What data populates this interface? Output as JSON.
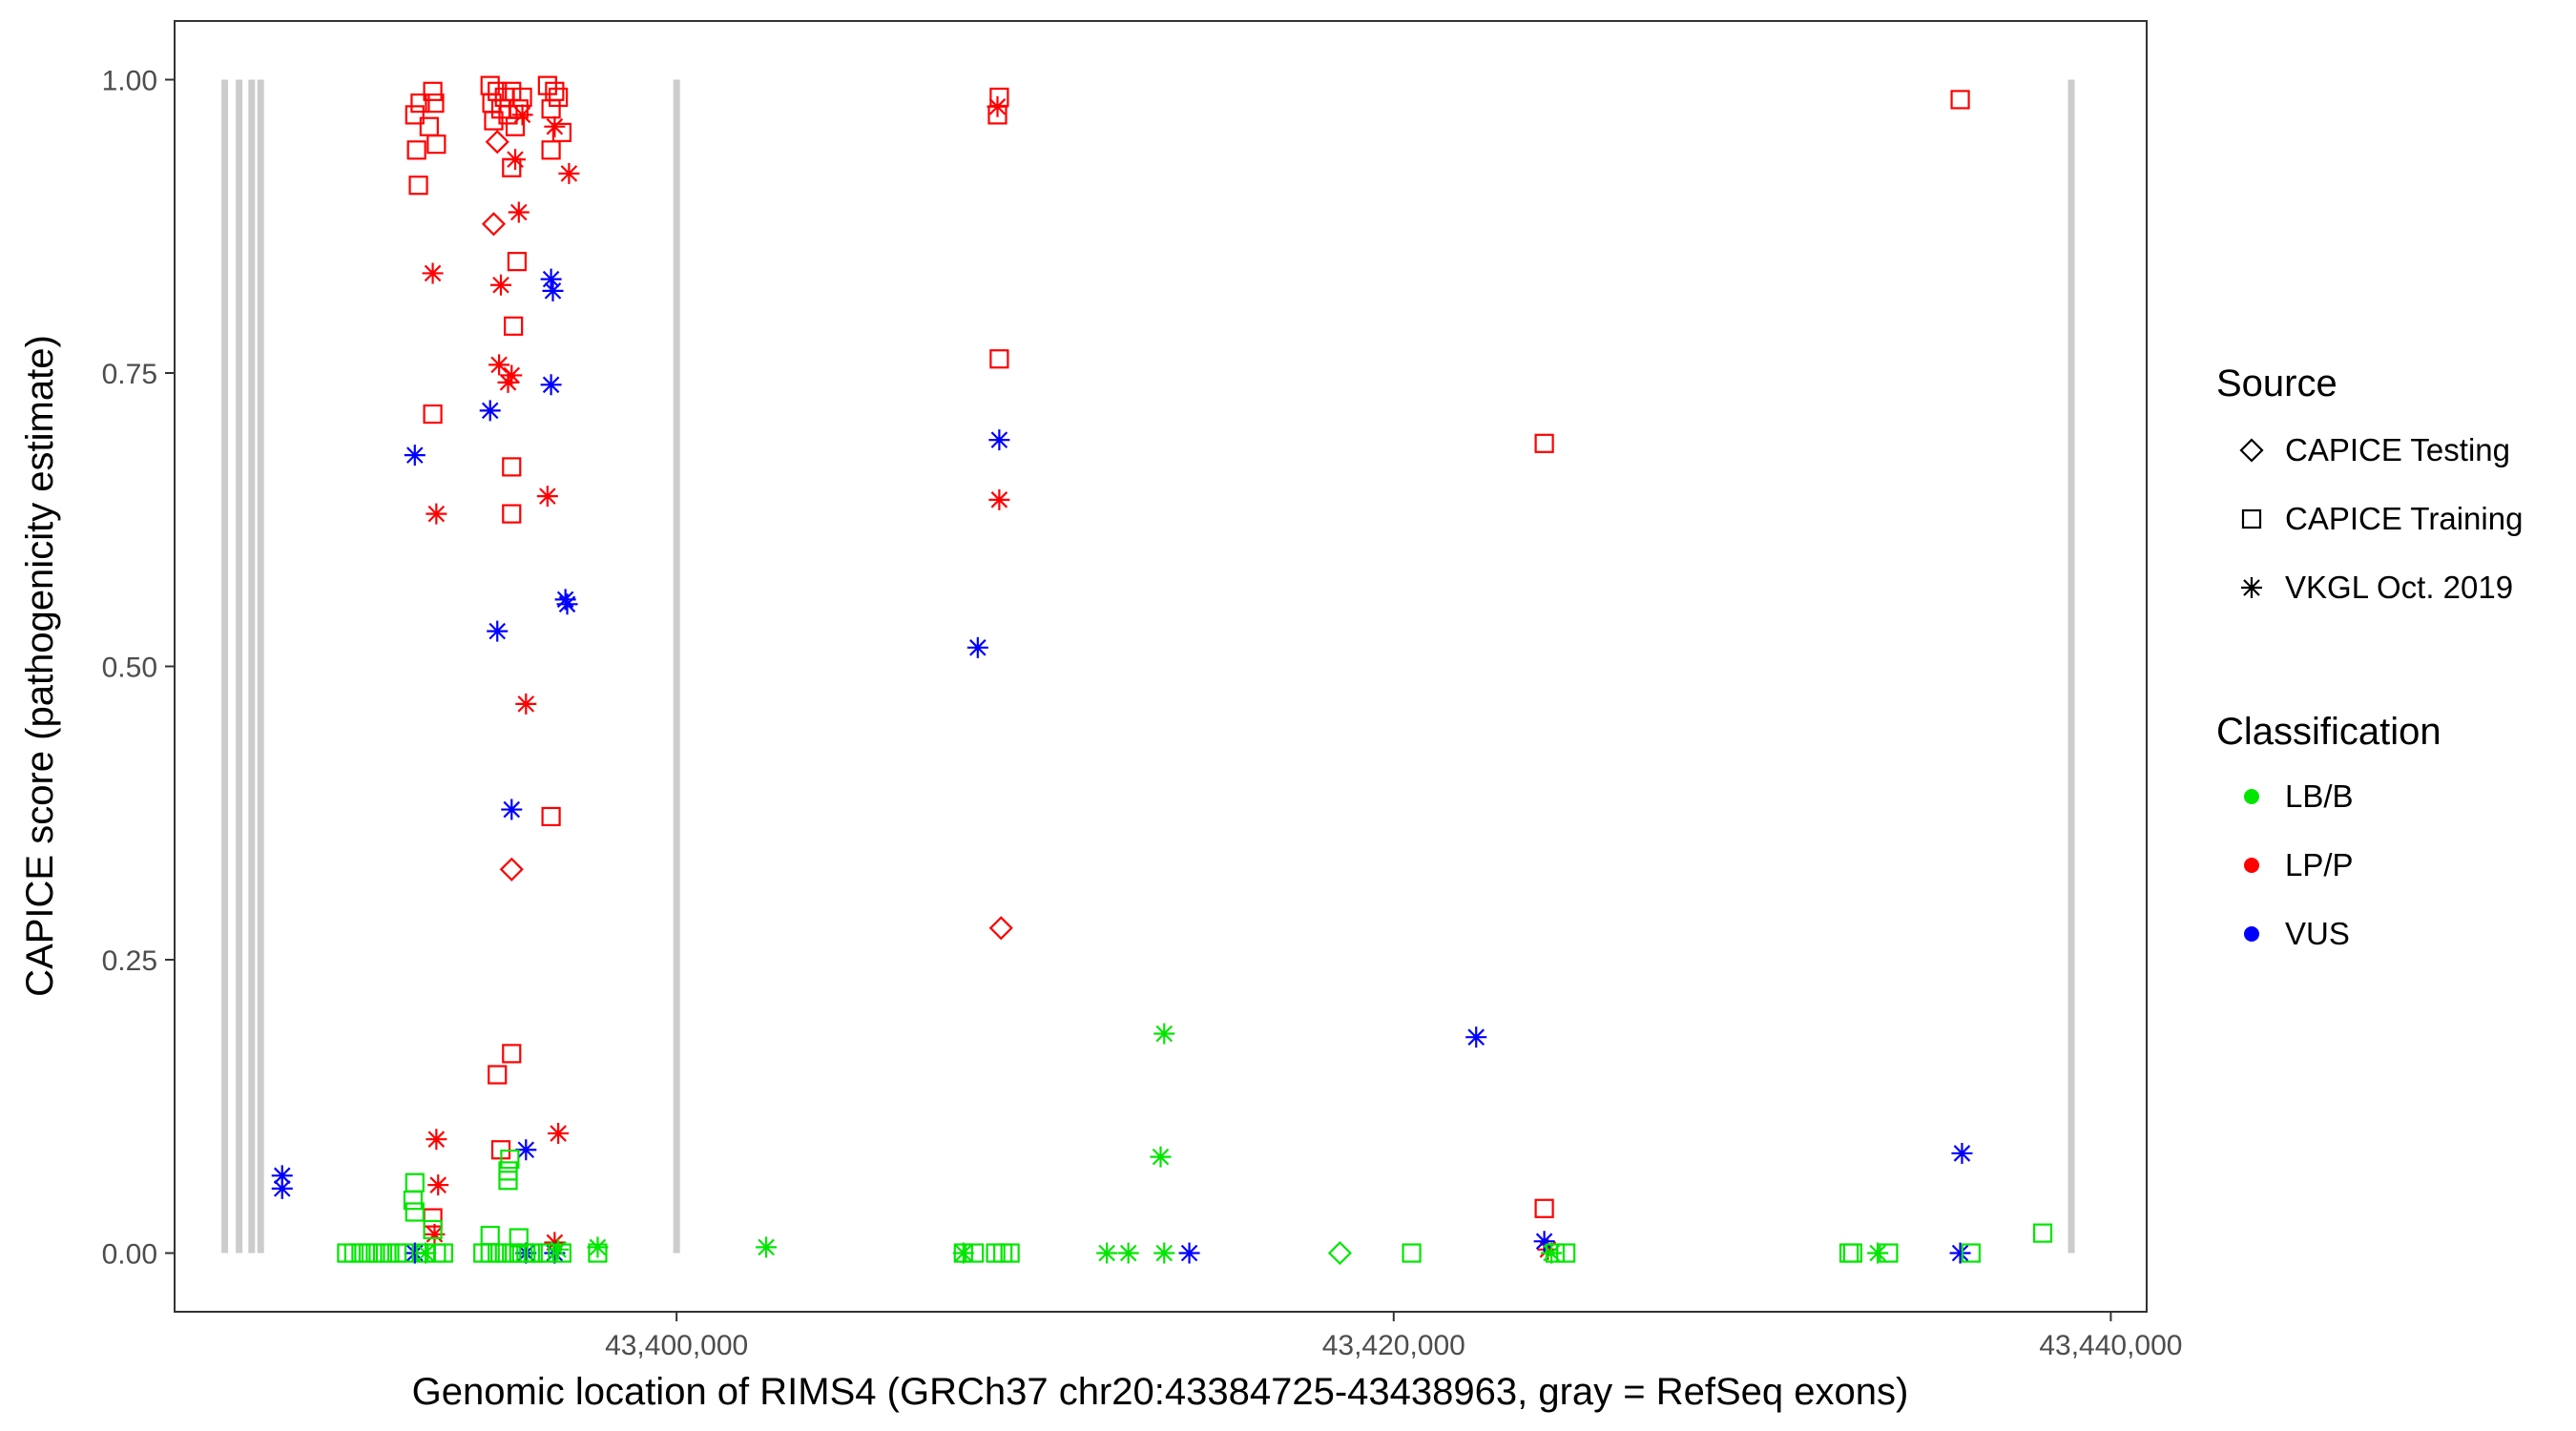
{
  "chart_data": {
    "type": "scatter",
    "xlabel": "Genomic location of RIMS4 (GRCh37 chr20:43384725-43438963, gray = RefSeq exons)",
    "ylabel": "CAPICE score (pathogenicity estimate)",
    "xlim": [
      43386000,
      43441000
    ],
    "ylim": [
      -0.05,
      1.05
    ],
    "x_ticks": [
      {
        "value": 43400000,
        "label": "43,400,000"
      },
      {
        "value": 43420000,
        "label": "43,420,000"
      },
      {
        "value": 43440000,
        "label": "43,440,000"
      }
    ],
    "y_ticks": [
      {
        "value": 0.0,
        "label": "0.00"
      },
      {
        "value": 0.25,
        "label": "0.25"
      },
      {
        "value": 0.5,
        "label": "0.50"
      },
      {
        "value": 0.75,
        "label": "0.75"
      },
      {
        "value": 1.0,
        "label": "1.00"
      }
    ],
    "grid": false,
    "legend_placement": "right",
    "exons": [
      43387400,
      43387800,
      43388150,
      43388400,
      43400000,
      43438900
    ],
    "legend": {
      "source_title": "Source",
      "source_items": [
        {
          "label": "CAPICE Testing",
          "shape": "diamond"
        },
        {
          "label": "CAPICE Training",
          "shape": "square"
        },
        {
          "label": "VKGL Oct. 2019",
          "shape": "asterisk"
        }
      ],
      "class_title": "Classification",
      "class_items": [
        {
          "label": "LB/B",
          "color": "#00e600"
        },
        {
          "label": "LP/P",
          "color": "#ff0000"
        },
        {
          "label": "VUS",
          "color": "#0000ff"
        }
      ]
    },
    "colors": {
      "LB/B": "#00e600",
      "LP/P": "#ff0000",
      "VUS": "#0000ff",
      "exon": "#cccccc"
    },
    "points": [
      [
        43392700,
        0.97,
        "square",
        "LP/P"
      ],
      [
        43392750,
        0.94,
        "square",
        "LP/P"
      ],
      [
        43392800,
        0.91,
        "square",
        "LP/P"
      ],
      [
        43392850,
        0.98,
        "square",
        "LP/P"
      ],
      [
        43393100,
        0.96,
        "square",
        "LP/P"
      ],
      [
        43393200,
        0.99,
        "square",
        "LP/P"
      ],
      [
        43393250,
        0.98,
        "square",
        "LP/P"
      ],
      [
        43393300,
        0.945,
        "square",
        "LP/P"
      ],
      [
        43393200,
        0.715,
        "square",
        "LP/P"
      ],
      [
        43394800,
        0.995,
        "square",
        "LP/P"
      ],
      [
        43394850,
        0.98,
        "square",
        "LP/P"
      ],
      [
        43394900,
        0.965,
        "square",
        "LP/P"
      ],
      [
        43395000,
        0.99,
        "square",
        "LP/P"
      ],
      [
        43395100,
        0.975,
        "square",
        "LP/P"
      ],
      [
        43395200,
        0.985,
        "square",
        "LP/P"
      ],
      [
        43395300,
        0.97,
        "square",
        "LP/P"
      ],
      [
        43395400,
        0.99,
        "square",
        "LP/P"
      ],
      [
        43395500,
        0.96,
        "square",
        "LP/P"
      ],
      [
        43395600,
        0.975,
        "square",
        "LP/P"
      ],
      [
        43395700,
        0.985,
        "square",
        "LP/P"
      ],
      [
        43395400,
        0.925,
        "square",
        "LP/P"
      ],
      [
        43395550,
        0.845,
        "square",
        "LP/P"
      ],
      [
        43395450,
        0.79,
        "square",
        "LP/P"
      ],
      [
        43395400,
        0.67,
        "square",
        "LP/P"
      ],
      [
        43395400,
        0.63,
        "square",
        "LP/P"
      ],
      [
        43396400,
        0.995,
        "square",
        "LP/P"
      ],
      [
        43396500,
        0.975,
        "square",
        "LP/P"
      ],
      [
        43396600,
        0.99,
        "square",
        "LP/P"
      ],
      [
        43396700,
        0.985,
        "square",
        "LP/P"
      ],
      [
        43396800,
        0.955,
        "square",
        "LP/P"
      ],
      [
        43396500,
        0.94,
        "square",
        "LP/P"
      ],
      [
        43396500,
        0.372,
        "square",
        "LP/P"
      ],
      [
        43395400,
        0.17,
        "square",
        "LP/P"
      ],
      [
        43395000,
        0.152,
        "square",
        "LP/P"
      ],
      [
        43395100,
        0.088,
        "square",
        "LP/P"
      ],
      [
        43393200,
        0.03,
        "square",
        "LP/P"
      ],
      [
        43409000,
        0.985,
        "square",
        "LP/P"
      ],
      [
        43408950,
        0.97,
        "square",
        "LP/P"
      ],
      [
        43409000,
        0.762,
        "square",
        "LP/P"
      ],
      [
        43424200,
        0.69,
        "square",
        "LP/P"
      ],
      [
        43424200,
        0.038,
        "square",
        "LP/P"
      ],
      [
        43435800,
        0.983,
        "square",
        "LP/P"
      ],
      [
        43394900,
        0.877,
        "diamond",
        "LP/P"
      ],
      [
        43395000,
        0.947,
        "diamond",
        "LP/P"
      ],
      [
        43395400,
        0.327,
        "diamond",
        "LP/P"
      ],
      [
        43409050,
        0.277,
        "diamond",
        "LP/P"
      ],
      [
        43393200,
        0.835,
        "asterisk",
        "LP/P"
      ],
      [
        43393300,
        0.63,
        "asterisk",
        "LP/P"
      ],
      [
        43395100,
        0.825,
        "asterisk",
        "LP/P"
      ],
      [
        43395050,
        0.757,
        "asterisk",
        "LP/P"
      ],
      [
        43395300,
        0.742,
        "asterisk",
        "LP/P"
      ],
      [
        43395400,
        0.748,
        "asterisk",
        "LP/P"
      ],
      [
        43395600,
        0.887,
        "asterisk",
        "LP/P"
      ],
      [
        43395500,
        0.932,
        "asterisk",
        "LP/P"
      ],
      [
        43395700,
        0.97,
        "asterisk",
        "LP/P"
      ],
      [
        43396400,
        0.645,
        "asterisk",
        "LP/P"
      ],
      [
        43396600,
        0.96,
        "asterisk",
        "LP/P"
      ],
      [
        43397000,
        0.92,
        "asterisk",
        "LP/P"
      ],
      [
        43395800,
        0.468,
        "asterisk",
        "LP/P"
      ],
      [
        43393300,
        0.097,
        "asterisk",
        "LP/P"
      ],
      [
        43393350,
        0.058,
        "asterisk",
        "LP/P"
      ],
      [
        43393250,
        0.016,
        "asterisk",
        "LP/P"
      ],
      [
        43396700,
        0.102,
        "asterisk",
        "LP/P"
      ],
      [
        43396600,
        0.009,
        "asterisk",
        "LP/P"
      ],
      [
        43408950,
        0.977,
        "asterisk",
        "LP/P"
      ],
      [
        43409000,
        0.642,
        "asterisk",
        "LP/P"
      ],
      [
        43424300,
        0.003,
        "asterisk",
        "LP/P"
      ],
      [
        43389000,
        0.066,
        "asterisk",
        "VUS"
      ],
      [
        43389000,
        0.055,
        "asterisk",
        "VUS"
      ],
      [
        43392700,
        0.68,
        "asterisk",
        "VUS"
      ],
      [
        43394800,
        0.718,
        "asterisk",
        "VUS"
      ],
      [
        43395000,
        0.53,
        "asterisk",
        "VUS"
      ],
      [
        43395400,
        0.378,
        "asterisk",
        "VUS"
      ],
      [
        43396500,
        0.83,
        "asterisk",
        "VUS"
      ],
      [
        43396550,
        0.82,
        "asterisk",
        "VUS"
      ],
      [
        43396500,
        0.74,
        "asterisk",
        "VUS"
      ],
      [
        43396900,
        0.557,
        "asterisk",
        "VUS"
      ],
      [
        43396950,
        0.553,
        "asterisk",
        "VUS"
      ],
      [
        43395800,
        0.088,
        "asterisk",
        "VUS"
      ],
      [
        43392700,
        0.0,
        "asterisk",
        "VUS"
      ],
      [
        43395800,
        0.0,
        "asterisk",
        "VUS"
      ],
      [
        43396600,
        0.0,
        "asterisk",
        "VUS"
      ],
      [
        43408400,
        0.516,
        "asterisk",
        "VUS"
      ],
      [
        43409000,
        0.693,
        "asterisk",
        "VUS"
      ],
      [
        43414300,
        0.0,
        "asterisk",
        "VUS"
      ],
      [
        43422300,
        0.184,
        "asterisk",
        "VUS"
      ],
      [
        43424200,
        0.01,
        "asterisk",
        "VUS"
      ],
      [
        43435800,
        0.0,
        "asterisk",
        "VUS"
      ],
      [
        43435850,
        0.085,
        "asterisk",
        "VUS"
      ],
      [
        43392700,
        0.06,
        "square",
        "LB/B"
      ],
      [
        43392650,
        0.045,
        "square",
        "LB/B"
      ],
      [
        43392700,
        0.035,
        "square",
        "LB/B"
      ],
      [
        43393200,
        0.02,
        "square",
        "LB/B"
      ],
      [
        43395300,
        0.07,
        "square",
        "LB/B"
      ],
      [
        43395300,
        0.062,
        "square",
        "LB/B"
      ],
      [
        43395350,
        0.08,
        "square",
        "LB/B"
      ],
      [
        43394800,
        0.015,
        "square",
        "LB/B"
      ],
      [
        43395600,
        0.013,
        "square",
        "LB/B"
      ],
      [
        43390800,
        0.0,
        "square",
        "LB/B"
      ],
      [
        43391000,
        0.0,
        "square",
        "LB/B"
      ],
      [
        43391200,
        0.0,
        "square",
        "LB/B"
      ],
      [
        43391400,
        0.0,
        "square",
        "LB/B"
      ],
      [
        43391600,
        0.0,
        "square",
        "LB/B"
      ],
      [
        43391800,
        0.0,
        "square",
        "LB/B"
      ],
      [
        43392000,
        0.0,
        "square",
        "LB/B"
      ],
      [
        43392200,
        0.0,
        "square",
        "LB/B"
      ],
      [
        43392400,
        0.0,
        "square",
        "LB/B"
      ],
      [
        43393000,
        0.0,
        "square",
        "LB/B"
      ],
      [
        43393300,
        0.0,
        "square",
        "LB/B"
      ],
      [
        43393500,
        0.0,
        "square",
        "LB/B"
      ],
      [
        43394600,
        0.0,
        "square",
        "LB/B"
      ],
      [
        43394800,
        0.0,
        "square",
        "LB/B"
      ],
      [
        43395000,
        0.0,
        "square",
        "LB/B"
      ],
      [
        43395200,
        0.0,
        "square",
        "LB/B"
      ],
      [
        43395400,
        0.0,
        "square",
        "LB/B"
      ],
      [
        43395600,
        0.0,
        "square",
        "LB/B"
      ],
      [
        43395800,
        0.0,
        "square",
        "LB/B"
      ],
      [
        43396000,
        0.0,
        "square",
        "LB/B"
      ],
      [
        43396200,
        0.0,
        "square",
        "LB/B"
      ],
      [
        43396400,
        0.0,
        "square",
        "LB/B"
      ],
      [
        43396800,
        0.0,
        "square",
        "LB/B"
      ],
      [
        43397800,
        0.0,
        "square",
        "LB/B"
      ],
      [
        43408000,
        0.0,
        "square",
        "LB/B"
      ],
      [
        43408300,
        0.0,
        "square",
        "LB/B"
      ],
      [
        43408900,
        0.0,
        "square",
        "LB/B"
      ],
      [
        43409100,
        0.0,
        "square",
        "LB/B"
      ],
      [
        43409300,
        0.0,
        "square",
        "LB/B"
      ],
      [
        43420500,
        0.0,
        "square",
        "LB/B"
      ],
      [
        43424500,
        0.0,
        "square",
        "LB/B"
      ],
      [
        43424800,
        0.0,
        "square",
        "LB/B"
      ],
      [
        43432700,
        0.0,
        "square",
        "LB/B"
      ],
      [
        43432800,
        0.0,
        "square",
        "LB/B"
      ],
      [
        43433800,
        0.0,
        "square",
        "LB/B"
      ],
      [
        43436100,
        0.0,
        "square",
        "LB/B"
      ],
      [
        43438100,
        0.017,
        "square",
        "LB/B"
      ],
      [
        43418500,
        0.0,
        "diamond",
        "LB/B"
      ],
      [
        43393000,
        0.0,
        "asterisk",
        "LB/B"
      ],
      [
        43397800,
        0.005,
        "asterisk",
        "LB/B"
      ],
      [
        43402500,
        0.005,
        "asterisk",
        "LB/B"
      ],
      [
        43408000,
        0.0,
        "asterisk",
        "LB/B"
      ],
      [
        43412000,
        0.0,
        "asterisk",
        "LB/B"
      ],
      [
        43412600,
        0.0,
        "asterisk",
        "LB/B"
      ],
      [
        43413600,
        0.187,
        "asterisk",
        "LB/B"
      ],
      [
        43413500,
        0.082,
        "asterisk",
        "LB/B"
      ],
      [
        43413600,
        0.0,
        "asterisk",
        "LB/B"
      ],
      [
        43424400,
        0.0,
        "asterisk",
        "LB/B"
      ],
      [
        43433500,
        0.0,
        "asterisk",
        "LB/B"
      ],
      [
        43396700,
        0.003,
        "asterisk",
        "LB/B"
      ]
    ]
  }
}
